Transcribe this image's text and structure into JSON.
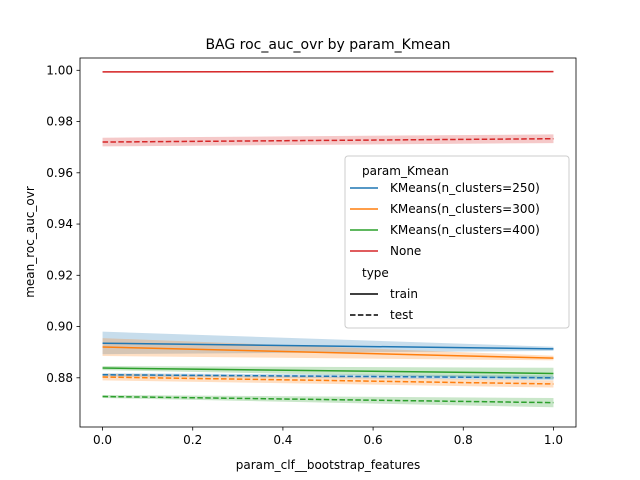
{
  "chart_data": {
    "type": "line",
    "title": "BAG roc_auc_ovr by param_Kmean",
    "xlabel": "param_clf__bootstrap_features",
    "ylabel": "mean_roc_auc_ovr",
    "xlim": [
      -0.05,
      1.05
    ],
    "ylim": [
      0.8608,
      1.0048
    ],
    "xticks": [
      0.0,
      0.2,
      0.4,
      0.6,
      0.8,
      1.0
    ],
    "xtick_labels": [
      "0.0",
      "0.2",
      "0.4",
      "0.6",
      "0.8",
      "1.0"
    ],
    "yticks": [
      0.88,
      0.9,
      0.92,
      0.94,
      0.96,
      0.98,
      1.0
    ],
    "ytick_labels": [
      "0.88",
      "0.90",
      "0.92",
      "0.94",
      "0.96",
      "0.98",
      "1.00"
    ],
    "grid": false,
    "legend": {
      "placement": "center-right",
      "hue_title": "param_Kmean",
      "style_title": "type",
      "entries": [
        {
          "label": "KMeans(n_clusters=250)",
          "color": "#1f77b4",
          "dash": "solid"
        },
        {
          "label": "KMeans(n_clusters=300)",
          "color": "#ff7f0e",
          "dash": "solid"
        },
        {
          "label": "KMeans(n_clusters=400)",
          "color": "#2ca02c",
          "dash": "solid"
        },
        {
          "label": "None",
          "color": "#d62728",
          "dash": "solid"
        }
      ],
      "style_entries": [
        {
          "label": "train",
          "color": "#000000",
          "dash": "solid"
        },
        {
          "label": "test",
          "color": "#000000",
          "dash": "dashed"
        }
      ]
    },
    "series": [
      {
        "param_Kmean": "KMeans(n_clusters=250)",
        "type": "train",
        "color": "#1f77b4",
        "dash": "solid",
        "x": [
          0.0,
          1.0
        ],
        "y": [
          0.8935,
          0.8913
        ],
        "ci_low": [
          0.8892,
          0.8905
        ],
        "ci_high": [
          0.898,
          0.8921
        ]
      },
      {
        "param_Kmean": "KMeans(n_clusters=300)",
        "type": "train",
        "color": "#ff7f0e",
        "dash": "solid",
        "x": [
          0.0,
          1.0
        ],
        "y": [
          0.892,
          0.8877
        ],
        "ci_low": [
          0.8885,
          0.8868
        ],
        "ci_high": [
          0.8955,
          0.8886
        ]
      },
      {
        "param_Kmean": "KMeans(n_clusters=400)",
        "type": "train",
        "color": "#2ca02c",
        "dash": "solid",
        "x": [
          0.0,
          1.0
        ],
        "y": [
          0.8838,
          0.8817
        ],
        "ci_low": [
          0.883,
          0.8795
        ],
        "ci_high": [
          0.8846,
          0.8839
        ]
      },
      {
        "param_Kmean": "None",
        "type": "train",
        "color": "#d62728",
        "dash": "solid",
        "x": [
          0.0,
          1.0
        ],
        "y": [
          0.9994,
          0.9995
        ],
        "ci_low": [
          0.9991,
          0.9992
        ],
        "ci_high": [
          0.9997,
          0.9998
        ]
      },
      {
        "param_Kmean": "KMeans(n_clusters=250)",
        "type": "test",
        "color": "#1f77b4",
        "dash": "dashed",
        "x": [
          0.0,
          1.0
        ],
        "y": [
          0.8812,
          0.88
        ],
        "ci_low": [
          0.8806,
          0.8791
        ],
        "ci_high": [
          0.8818,
          0.8809
        ]
      },
      {
        "param_Kmean": "KMeans(n_clusters=300)",
        "type": "test",
        "color": "#ff7f0e",
        "dash": "dashed",
        "x": [
          0.0,
          1.0
        ],
        "y": [
          0.8803,
          0.8776
        ],
        "ci_low": [
          0.879,
          0.8762
        ],
        "ci_high": [
          0.8816,
          0.879
        ]
      },
      {
        "param_Kmean": "KMeans(n_clusters=400)",
        "type": "test",
        "color": "#2ca02c",
        "dash": "dashed",
        "x": [
          0.0,
          1.0
        ],
        "y": [
          0.8727,
          0.8703
        ],
        "ci_low": [
          0.8721,
          0.8685
        ],
        "ci_high": [
          0.8733,
          0.8721
        ]
      },
      {
        "param_Kmean": "None",
        "type": "test",
        "color": "#d62728",
        "dash": "dashed",
        "x": [
          0.0,
          1.0
        ],
        "y": [
          0.972,
          0.9733
        ],
        "ci_low": [
          0.9703,
          0.9716
        ],
        "ci_high": [
          0.9737,
          0.975
        ]
      }
    ]
  }
}
